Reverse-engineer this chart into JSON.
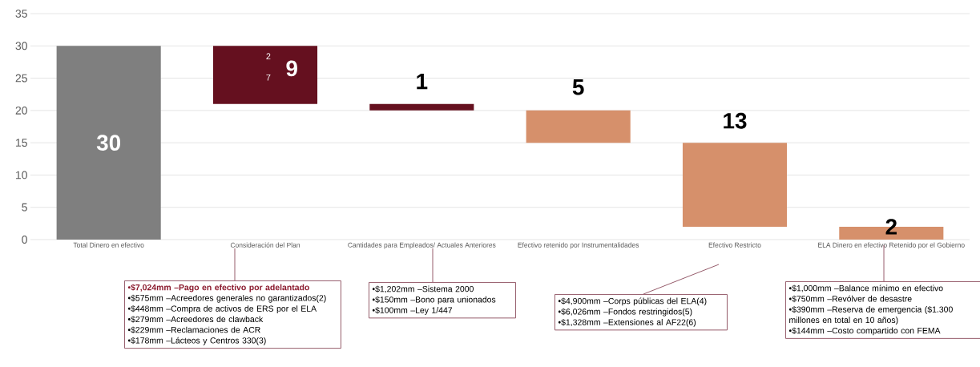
{
  "chart_data": {
    "type": "bar",
    "categories": [
      "Total Dinero en efectivo",
      "Consideración del Plan",
      "Cantidades para Empleados/ Actuales Anteriores",
      "Efectivo retenido por Instrumentalidades",
      "Efectivo Restricto",
      "ELA Dinero en efectivo Retenido por el Gobierno"
    ],
    "values": [
      30,
      9,
      1,
      5,
      13,
      2
    ],
    "base": [
      0,
      21,
      20,
      15,
      2,
      0
    ],
    "colors": [
      "#7f7f7f",
      "#65101f",
      "#65101f",
      "#d6906b",
      "#d6906b",
      "#d6906b"
    ],
    "ylim": [
      0,
      35
    ],
    "yticks": [
      0,
      5,
      10,
      15,
      20,
      25,
      30,
      35
    ],
    "grid": "y",
    "data_labels": true,
    "annotations": [
      "2",
      "7",
      "•$7,024mm –Pago en efectivo por adelantado",
      "•$575mm –Acreedores generales no garantizados(2)",
      "•$448mm –Compra de activos de ERS por el ELA",
      "•$279mm –Acreedores de clawback",
      "•$229mm –Reclamaciones de ACR",
      "•$178mm –Lácteos y Centros 330(3)",
      "•$1,202mm –Sistema 2000",
      "•$150mm –Bono para unionados",
      "•$100mm –Ley 1/447",
      "•$4,900mm –Corps públicas del ELA(4)",
      "•$6,026mm –Fondos restringidos(5)",
      "•$1,328mm –Extensiones al AF22(6)",
      "•$1,000mm –Balance mínimo en efectivo",
      "•$750mm –Revólver de desastre",
      "•$390mm –Reserva de emergencia ($1.300 millones en total en 10 años)",
      "•$144mm –Costo compartido con FEMA"
    ]
  }
}
